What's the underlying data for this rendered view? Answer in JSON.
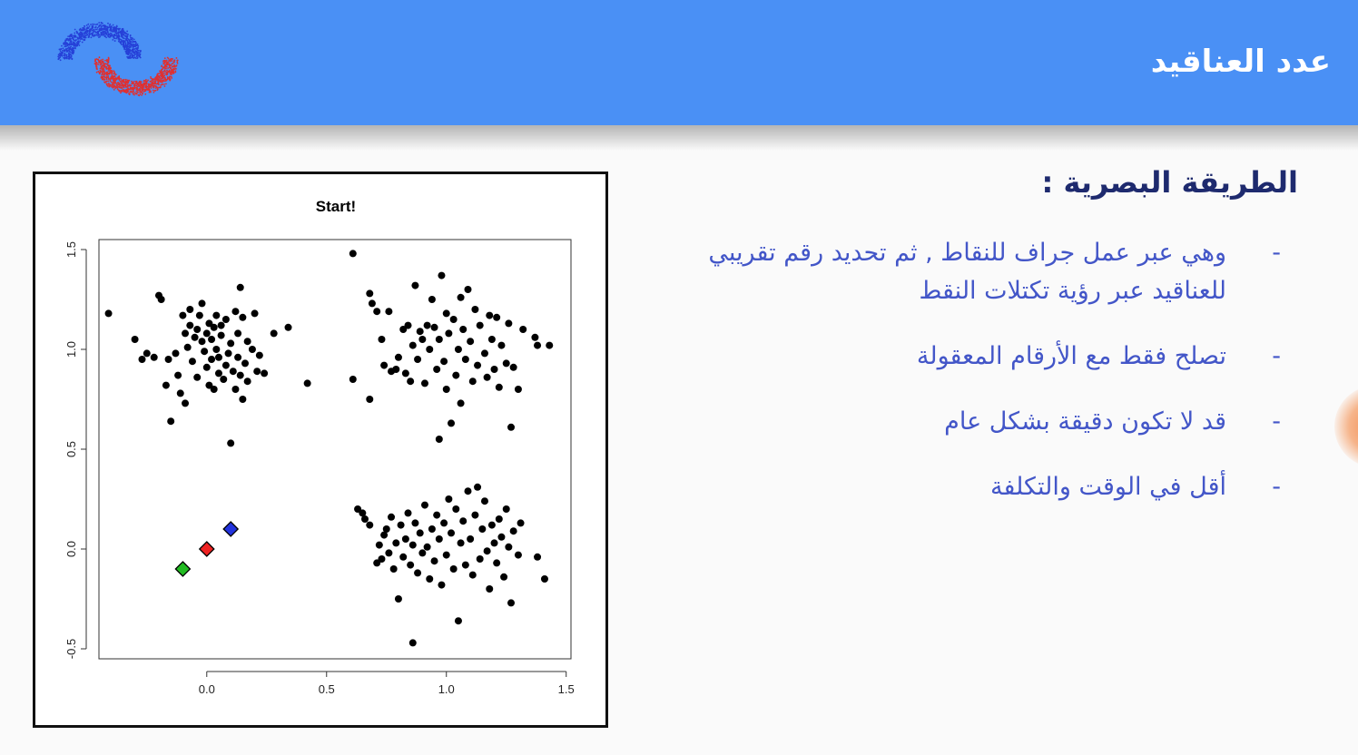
{
  "header": {
    "title": "عدد العناقيد",
    "logo_icon": "clusters-logo-icon",
    "colors": {
      "bar": "#4a90f5",
      "text": "#ffffff"
    }
  },
  "section": {
    "heading": "الطريقة البصرية  :",
    "bullets": [
      {
        "marker": "-",
        "text": "وهي عبر عمل جراف للنقاط , ثم تحديد رقم تقريبي للعناقيد عبر رؤية تكتلات  النقط"
      },
      {
        "marker": "-",
        "text": "تصلح فقط مع الأرقام المعقولة"
      },
      {
        "marker": "-",
        "text": "قد لا تكون دقيقة بشكل عام"
      },
      {
        "marker": "-",
        "text": "أقل في الوقت والتكلفة"
      }
    ],
    "colors": {
      "heading": "#1e2a6e",
      "bullets": "#4356c8"
    }
  },
  "chart_data": {
    "type": "scatter",
    "title": "Start!",
    "xlabel": "",
    "ylabel": "",
    "xlim": [
      -0.45,
      1.52
    ],
    "ylim": [
      -0.55,
      1.55
    ],
    "xticks": [
      "0.0",
      "0.5",
      "1.0",
      "1.5"
    ],
    "xtick_values": [
      0.0,
      0.5,
      1.0,
      1.5
    ],
    "yticks": [
      "-0.5",
      "0.0",
      "0.5",
      "1.0",
      "1.5"
    ],
    "ytick_values": [
      -0.5,
      0.0,
      0.5,
      1.0,
      1.5
    ],
    "grid": false,
    "series": [
      {
        "marker": "circle",
        "color": "#000000",
        "points": [
          [
            -0.41,
            1.18
          ],
          [
            -0.3,
            1.05
          ],
          [
            -0.27,
            0.95
          ],
          [
            -0.25,
            0.98
          ],
          [
            -0.22,
            0.96
          ],
          [
            -0.2,
            1.27
          ],
          [
            -0.19,
            1.25
          ],
          [
            -0.17,
            0.82
          ],
          [
            -0.16,
            0.95
          ],
          [
            -0.15,
            0.64
          ],
          [
            -0.13,
            0.98
          ],
          [
            -0.12,
            0.87
          ],
          [
            -0.11,
            0.78
          ],
          [
            -0.1,
            1.17
          ],
          [
            -0.09,
            1.08
          ],
          [
            -0.09,
            0.73
          ],
          [
            -0.08,
            1.01
          ],
          [
            -0.07,
            1.12
          ],
          [
            -0.07,
            1.2
          ],
          [
            -0.06,
            0.94
          ],
          [
            -0.05,
            1.06
          ],
          [
            -0.04,
            1.1
          ],
          [
            -0.04,
            0.86
          ],
          [
            -0.03,
            1.17
          ],
          [
            -0.02,
            1.23
          ],
          [
            -0.02,
            1.04
          ],
          [
            -0.01,
            0.99
          ],
          [
            0.0,
            1.08
          ],
          [
            0.0,
            0.91
          ],
          [
            0.01,
            1.13
          ],
          [
            0.01,
            0.82
          ],
          [
            0.02,
            1.05
          ],
          [
            0.02,
            0.95
          ],
          [
            0.03,
            1.11
          ],
          [
            0.03,
            0.8
          ],
          [
            0.04,
            1.0
          ],
          [
            0.04,
            1.17
          ],
          [
            0.05,
            0.88
          ],
          [
            0.05,
            0.96
          ],
          [
            0.06,
            1.07
          ],
          [
            0.06,
            1.12
          ],
          [
            0.07,
            0.85
          ],
          [
            0.08,
            0.92
          ],
          [
            0.08,
            1.15
          ],
          [
            0.09,
            0.98
          ],
          [
            0.1,
            1.03
          ],
          [
            0.1,
            0.53
          ],
          [
            0.11,
            0.89
          ],
          [
            0.12,
            1.19
          ],
          [
            0.12,
            0.8
          ],
          [
            0.13,
            0.96
          ],
          [
            0.13,
            1.08
          ],
          [
            0.14,
            1.31
          ],
          [
            0.14,
            0.87
          ],
          [
            0.15,
            1.16
          ],
          [
            0.15,
            0.75
          ],
          [
            0.16,
            0.93
          ],
          [
            0.17,
            1.04
          ],
          [
            0.17,
            0.84
          ],
          [
            0.19,
            1.0
          ],
          [
            0.2,
            1.18
          ],
          [
            0.21,
            0.89
          ],
          [
            0.22,
            0.97
          ],
          [
            0.24,
            0.88
          ],
          [
            0.28,
            1.08
          ],
          [
            0.34,
            1.11
          ],
          [
            0.42,
            0.83
          ],
          [
            0.61,
            1.48
          ],
          [
            0.61,
            0.85
          ],
          [
            0.68,
            0.75
          ],
          [
            0.68,
            1.28
          ],
          [
            0.69,
            1.23
          ],
          [
            0.71,
            1.19
          ],
          [
            0.73,
            1.05
          ],
          [
            0.74,
            0.92
          ],
          [
            0.76,
            1.19
          ],
          [
            0.77,
            0.89
          ],
          [
            0.79,
            0.9
          ],
          [
            0.8,
            0.96
          ],
          [
            0.82,
            1.1
          ],
          [
            0.83,
            0.88
          ],
          [
            0.84,
            1.12
          ],
          [
            0.85,
            0.84
          ],
          [
            0.86,
            1.02
          ],
          [
            0.87,
            1.32
          ],
          [
            0.88,
            0.95
          ],
          [
            0.89,
            1.09
          ],
          [
            0.9,
            1.05
          ],
          [
            0.91,
            0.83
          ],
          [
            0.92,
            1.12
          ],
          [
            0.93,
            1.0
          ],
          [
            0.94,
            1.25
          ],
          [
            0.95,
            1.11
          ],
          [
            0.96,
            0.9
          ],
          [
            0.97,
            1.05
          ],
          [
            0.97,
            0.55
          ],
          [
            0.98,
            1.37
          ],
          [
            0.99,
            0.94
          ],
          [
            1.0,
            1.18
          ],
          [
            1.0,
            0.8
          ],
          [
            1.01,
            1.08
          ],
          [
            1.02,
            0.63
          ],
          [
            1.03,
            1.15
          ],
          [
            1.04,
            0.87
          ],
          [
            1.05,
            1.0
          ],
          [
            1.06,
            1.26
          ],
          [
            1.06,
            0.73
          ],
          [
            1.07,
            1.1
          ],
          [
            1.08,
            0.95
          ],
          [
            1.09,
            1.3
          ],
          [
            1.1,
            1.04
          ],
          [
            1.11,
            0.84
          ],
          [
            1.12,
            1.2
          ],
          [
            1.13,
            0.92
          ],
          [
            1.14,
            1.12
          ],
          [
            1.16,
            0.98
          ],
          [
            1.17,
            0.86
          ],
          [
            1.18,
            1.17
          ],
          [
            1.19,
            1.05
          ],
          [
            1.2,
            0.9
          ],
          [
            1.21,
            1.16
          ],
          [
            1.22,
            0.81
          ],
          [
            1.23,
            1.02
          ],
          [
            1.25,
            0.93
          ],
          [
            1.26,
            1.13
          ],
          [
            1.27,
            0.61
          ],
          [
            1.28,
            0.91
          ],
          [
            1.3,
            0.8
          ],
          [
            1.32,
            1.1
          ],
          [
            1.37,
            1.06
          ],
          [
            1.38,
            1.02
          ],
          [
            1.43,
            1.02
          ],
          [
            0.63,
            0.2
          ],
          [
            0.65,
            0.18
          ],
          [
            0.66,
            0.15
          ],
          [
            0.68,
            0.12
          ],
          [
            0.71,
            -0.07
          ],
          [
            0.72,
            0.02
          ],
          [
            0.73,
            -0.05
          ],
          [
            0.74,
            0.07
          ],
          [
            0.75,
            0.1
          ],
          [
            0.76,
            -0.02
          ],
          [
            0.77,
            0.16
          ],
          [
            0.78,
            -0.1
          ],
          [
            0.79,
            0.03
          ],
          [
            0.8,
            -0.25
          ],
          [
            0.81,
            0.12
          ],
          [
            0.82,
            -0.04
          ],
          [
            0.83,
            0.05
          ],
          [
            0.84,
            0.18
          ],
          [
            0.85,
            -0.08
          ],
          [
            0.86,
            -0.47
          ],
          [
            0.86,
            0.02
          ],
          [
            0.87,
            0.13
          ],
          [
            0.88,
            -0.12
          ],
          [
            0.89,
            0.08
          ],
          [
            0.9,
            -0.02
          ],
          [
            0.91,
            0.22
          ],
          [
            0.92,
            0.01
          ],
          [
            0.93,
            -0.15
          ],
          [
            0.94,
            0.1
          ],
          [
            0.95,
            -0.06
          ],
          [
            0.96,
            0.17
          ],
          [
            0.97,
            0.05
          ],
          [
            0.98,
            -0.18
          ],
          [
            0.99,
            0.13
          ],
          [
            1.0,
            -0.03
          ],
          [
            1.01,
            0.25
          ],
          [
            1.02,
            0.08
          ],
          [
            1.03,
            -0.1
          ],
          [
            1.04,
            0.2
          ],
          [
            1.05,
            -0.36
          ],
          [
            1.06,
            0.03
          ],
          [
            1.07,
            0.14
          ],
          [
            1.08,
            -0.08
          ],
          [
            1.09,
            0.29
          ],
          [
            1.1,
            0.05
          ],
          [
            1.11,
            -0.13
          ],
          [
            1.12,
            0.17
          ],
          [
            1.13,
            0.31
          ],
          [
            1.14,
            -0.05
          ],
          [
            1.15,
            0.1
          ],
          [
            1.16,
            0.24
          ],
          [
            1.17,
            -0.01
          ],
          [
            1.18,
            -0.2
          ],
          [
            1.19,
            0.12
          ],
          [
            1.2,
            0.03
          ],
          [
            1.21,
            -0.07
          ],
          [
            1.22,
            0.15
          ],
          [
            1.23,
            0.06
          ],
          [
            1.24,
            -0.14
          ],
          [
            1.25,
            0.2
          ],
          [
            1.26,
            0.01
          ],
          [
            1.27,
            -0.27
          ],
          [
            1.28,
            0.09
          ],
          [
            1.3,
            -0.03
          ],
          [
            1.31,
            0.13
          ],
          [
            1.38,
            -0.04
          ],
          [
            1.41,
            -0.15
          ]
        ]
      },
      {
        "marker": "diamond",
        "color": "#2233dd",
        "points": [
          [
            0.1,
            0.1
          ]
        ]
      },
      {
        "marker": "diamond",
        "color": "#ee2222",
        "points": [
          [
            0.0,
            0.0
          ]
        ]
      },
      {
        "marker": "diamond",
        "color": "#22bb22",
        "points": [
          [
            -0.1,
            -0.1
          ]
        ]
      }
    ]
  }
}
